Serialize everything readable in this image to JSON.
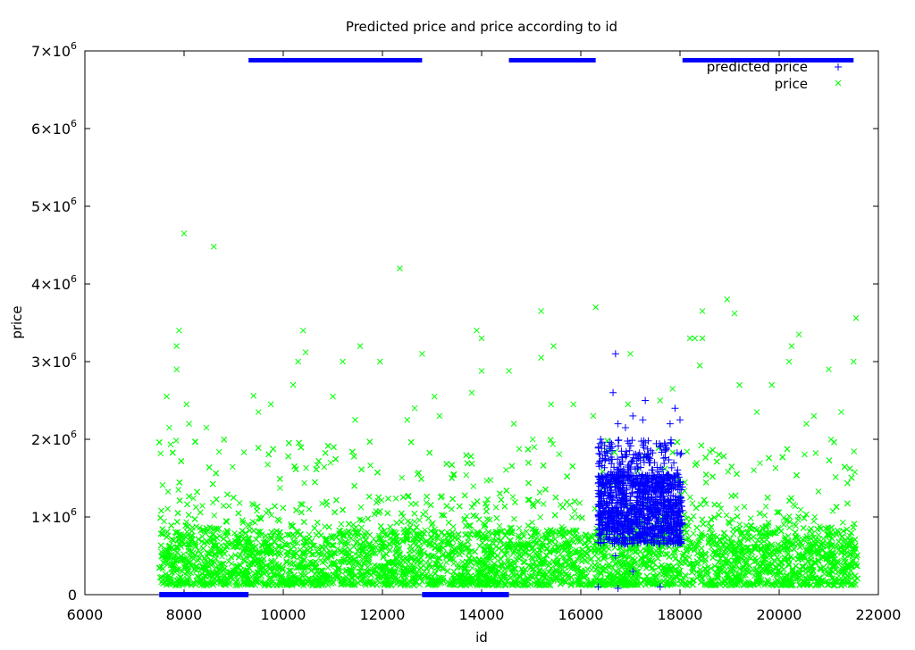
{
  "chart_data": {
    "type": "scatter",
    "title": "Predicted price and price according to id",
    "xlabel": "id",
    "ylabel": "price",
    "xlim": [
      6000,
      22000
    ],
    "ylim": [
      0,
      7000000
    ],
    "x_ticks": [
      "6000",
      "8000",
      "10000",
      "12000",
      "14000",
      "16000",
      "18000",
      "20000",
      "22000"
    ],
    "y_ticks": [
      {
        "base": "0",
        "exp": ""
      },
      {
        "base": "1×10",
        "exp": "6"
      },
      {
        "base": "2×10",
        "exp": "6"
      },
      {
        "base": "3×10",
        "exp": "6"
      },
      {
        "base": "4×10",
        "exp": "6"
      },
      {
        "base": "5×10",
        "exp": "6"
      },
      {
        "base": "6×10",
        "exp": "6"
      },
      {
        "base": "7×10",
        "exp": "6"
      }
    ],
    "grid": false,
    "legend_position": "top-right",
    "series": [
      {
        "name": "predicted price",
        "marker": "plus",
        "color": "#0000ff",
        "x_range": [
          16300,
          18100
        ],
        "density_center": 1100000,
        "points": [
          [
            16700,
            3100000
          ],
          [
            16650,
            2600000
          ],
          [
            17300,
            2500000
          ],
          [
            17050,
            2300000
          ],
          [
            17250,
            2250000
          ],
          [
            16750,
            2200000
          ],
          [
            16900,
            2150000
          ],
          [
            17800,
            2200000
          ],
          [
            18000,
            2250000
          ],
          [
            17600,
            1900000
          ],
          [
            16400,
            2000000
          ],
          [
            17900,
            2400000
          ],
          [
            16700,
            500000
          ],
          [
            17050,
            300000
          ],
          [
            17600,
            100000
          ],
          [
            16750,
            80000
          ],
          [
            16350,
            100000
          ],
          [
            17400,
            1700000
          ],
          [
            17700,
            1850000
          ],
          [
            16500,
            1750000
          ]
        ],
        "coverage_bars": [
          [
            9300,
            12800
          ],
          [
            14550,
            16300
          ],
          [
            18050,
            21500
          ]
        ]
      },
      {
        "name": "price",
        "marker": "x",
        "color": "#00ff00",
        "x_range": [
          7500,
          21600
        ],
        "density_center": 500000,
        "points": [
          [
            8000,
            4650000
          ],
          [
            8600,
            4480000
          ],
          [
            12350,
            4200000
          ],
          [
            18950,
            3800000
          ],
          [
            16300,
            3700000
          ],
          [
            15200,
            3650000
          ],
          [
            19100,
            3620000
          ],
          [
            18450,
            3650000
          ],
          [
            21550,
            3560000
          ],
          [
            7900,
            3400000
          ],
          [
            10400,
            3400000
          ],
          [
            13900,
            3400000
          ],
          [
            14000,
            3300000
          ],
          [
            20400,
            3350000
          ],
          [
            18200,
            3300000
          ],
          [
            18300,
            3300000
          ],
          [
            7850,
            3200000
          ],
          [
            11550,
            3200000
          ],
          [
            15450,
            3200000
          ],
          [
            20250,
            3200000
          ],
          [
            17000,
            3100000
          ],
          [
            12800,
            3100000
          ],
          [
            10450,
            3120000
          ],
          [
            15200,
            3050000
          ],
          [
            10300,
            3000000
          ],
          [
            11200,
            3000000
          ],
          [
            11950,
            3000000
          ],
          [
            18450,
            3300000
          ],
          [
            21000,
            2900000
          ],
          [
            7850,
            2900000
          ],
          [
            14000,
            2880000
          ],
          [
            14550,
            2880000
          ],
          [
            18400,
            2950000
          ],
          [
            20200,
            3000000
          ],
          [
            21500,
            3000000
          ],
          [
            10200,
            2700000
          ],
          [
            19200,
            2700000
          ],
          [
            19850,
            2700000
          ],
          [
            7650,
            2550000
          ],
          [
            9400,
            2560000
          ],
          [
            11000,
            2550000
          ],
          [
            13050,
            2550000
          ],
          [
            13800,
            2600000
          ],
          [
            17850,
            2650000
          ],
          [
            9500,
            2350000
          ],
          [
            12650,
            2400000
          ],
          [
            13150,
            2300000
          ],
          [
            15850,
            2450000
          ],
          [
            17600,
            2500000
          ],
          [
            20700,
            2300000
          ],
          [
            21250,
            2350000
          ],
          [
            8100,
            2200000
          ],
          [
            7700,
            2150000
          ],
          [
            8450,
            2150000
          ],
          [
            11450,
            2250000
          ],
          [
            12500,
            2250000
          ],
          [
            14650,
            2200000
          ],
          [
            16250,
            2300000
          ],
          [
            19550,
            2350000
          ],
          [
            20550,
            2200000
          ],
          [
            8050,
            2450000
          ],
          [
            9750,
            2450000
          ],
          [
            15400,
            2450000
          ],
          [
            16950,
            2450000
          ]
        ]
      }
    ]
  }
}
